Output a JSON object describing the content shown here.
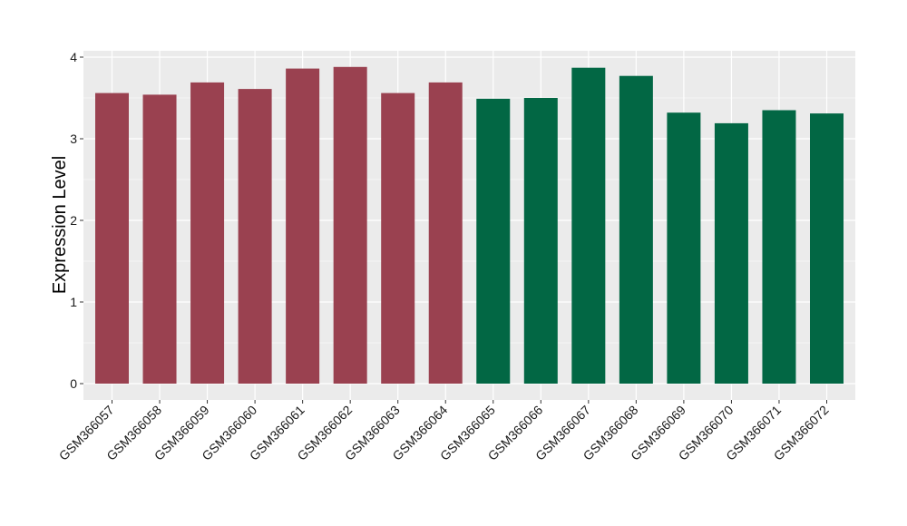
{
  "chart_data": {
    "type": "bar",
    "title": "",
    "xlabel": "",
    "ylabel": "Expression Level",
    "ylim": [
      0,
      4
    ],
    "yticks": [
      0,
      1,
      2,
      3,
      4
    ],
    "grid": true,
    "legend": "none",
    "categories": [
      "GSM366057",
      "GSM366058",
      "GSM366059",
      "GSM366060",
      "GSM366061",
      "GSM366062",
      "GSM366063",
      "GSM366064",
      "GSM366065",
      "GSM366066",
      "GSM366067",
      "GSM366068",
      "GSM366069",
      "GSM366070",
      "GSM366071",
      "GSM366072"
    ],
    "values": [
      3.56,
      3.54,
      3.69,
      3.61,
      3.86,
      3.88,
      3.56,
      3.69,
      3.49,
      3.5,
      3.87,
      3.77,
      3.32,
      3.19,
      3.35,
      3.31
    ],
    "colors": [
      "#9a4150",
      "#9a4150",
      "#9a4150",
      "#9a4150",
      "#9a4150",
      "#9a4150",
      "#9a4150",
      "#9a4150",
      "#026744",
      "#026744",
      "#026744",
      "#026744",
      "#026744",
      "#026744",
      "#026744",
      "#026744"
    ],
    "panel_background": "#ebebeb",
    "grid_color": "#ffffff"
  }
}
